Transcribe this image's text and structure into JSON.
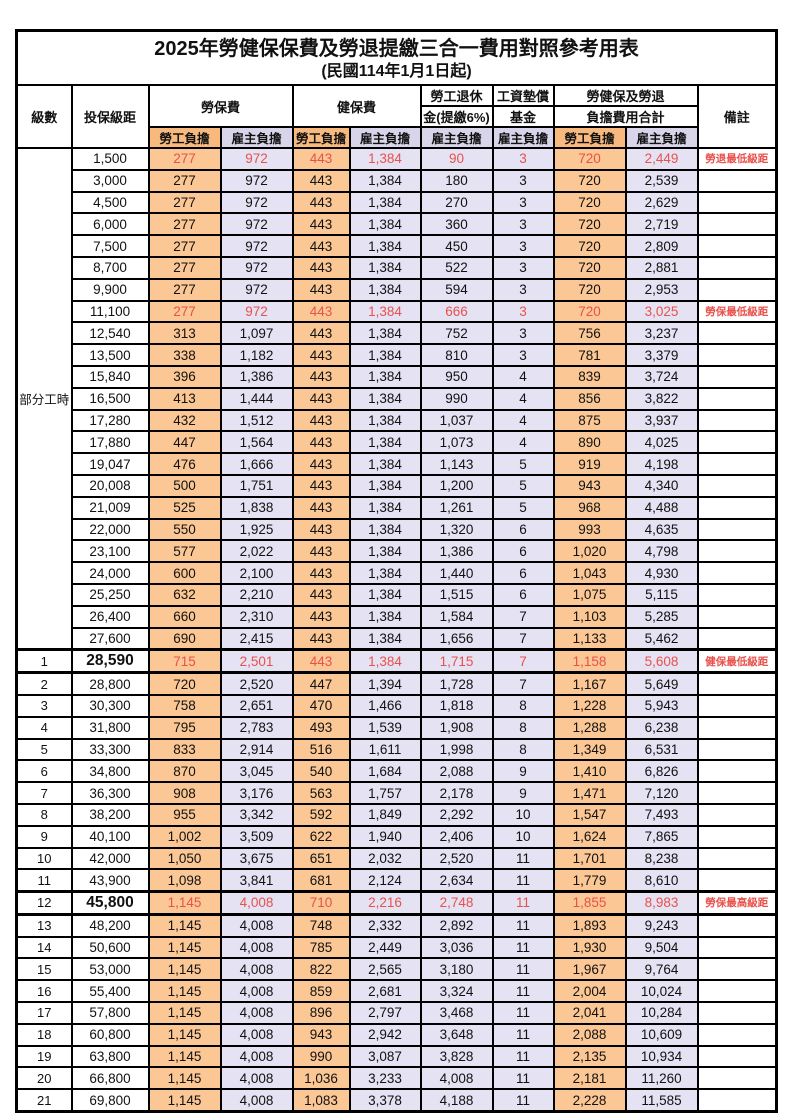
{
  "title": "2025年勞健保保費及勞退提繳三合一費用對照參考用表",
  "subtitle": "(民國114年1月1日起)",
  "part_time_label": "部分工時",
  "header": {
    "level": "級數",
    "bracket": "投保級距",
    "labor_ins": "勞保費",
    "health_ins": "健保費",
    "pension_line1": "勞工退休",
    "pension_line2": "金(提繳6%)",
    "wage_fund_line1": "工資墊償",
    "wage_fund_line2": "基金",
    "total_line1": "勞健保及勞退",
    "total_line2": "負擔費用合計",
    "remark": "備註",
    "employee": "勞工負擔",
    "employer": "雇主負擔"
  },
  "colors": {
    "employee_header_bg": "#f8b97e",
    "employer_header_bg": "#d8d4ea",
    "employee_cell_bg": "#fbc795",
    "employer_cell_bg": "#e5e2f3",
    "highlight_red": "#e8514c",
    "grid_black": "#000000"
  },
  "rows": [
    {
      "level": "",
      "bracket": "1,500",
      "values": [
        "277",
        "972",
        "443",
        "1,384",
        "90",
        "3",
        "720",
        "2,449"
      ],
      "remark": "勞退最低級距",
      "red": true
    },
    {
      "level": "",
      "bracket": "3,000",
      "values": [
        "277",
        "972",
        "443",
        "1,384",
        "180",
        "3",
        "720",
        "2,539"
      ],
      "remark": ""
    },
    {
      "level": "",
      "bracket": "4,500",
      "values": [
        "277",
        "972",
        "443",
        "1,384",
        "270",
        "3",
        "720",
        "2,629"
      ],
      "remark": ""
    },
    {
      "level": "",
      "bracket": "6,000",
      "values": [
        "277",
        "972",
        "443",
        "1,384",
        "360",
        "3",
        "720",
        "2,719"
      ],
      "remark": ""
    },
    {
      "level": "",
      "bracket": "7,500",
      "values": [
        "277",
        "972",
        "443",
        "1,384",
        "450",
        "3",
        "720",
        "2,809"
      ],
      "remark": ""
    },
    {
      "level": "",
      "bracket": "8,700",
      "values": [
        "277",
        "972",
        "443",
        "1,384",
        "522",
        "3",
        "720",
        "2,881"
      ],
      "remark": ""
    },
    {
      "level": "",
      "bracket": "9,900",
      "values": [
        "277",
        "972",
        "443",
        "1,384",
        "594",
        "3",
        "720",
        "2,953"
      ],
      "remark": ""
    },
    {
      "level": "",
      "bracket": "11,100",
      "values": [
        "277",
        "972",
        "443",
        "1,384",
        "666",
        "3",
        "720",
        "3,025"
      ],
      "remark": "勞保最低級距",
      "red": true
    },
    {
      "level": "",
      "bracket": "12,540",
      "values": [
        "313",
        "1,097",
        "443",
        "1,384",
        "752",
        "3",
        "756",
        "3,237"
      ],
      "remark": ""
    },
    {
      "level": "",
      "bracket": "13,500",
      "values": [
        "338",
        "1,182",
        "443",
        "1,384",
        "810",
        "3",
        "781",
        "3,379"
      ],
      "remark": ""
    },
    {
      "level": "",
      "bracket": "15,840",
      "values": [
        "396",
        "1,386",
        "443",
        "1,384",
        "950",
        "4",
        "839",
        "3,724"
      ],
      "remark": ""
    },
    {
      "level": "",
      "bracket": "16,500",
      "values": [
        "413",
        "1,444",
        "443",
        "1,384",
        "990",
        "4",
        "856",
        "3,822"
      ],
      "remark": ""
    },
    {
      "level": "",
      "bracket": "17,280",
      "values": [
        "432",
        "1,512",
        "443",
        "1,384",
        "1,037",
        "4",
        "875",
        "3,937"
      ],
      "remark": ""
    },
    {
      "level": "",
      "bracket": "17,880",
      "values": [
        "447",
        "1,564",
        "443",
        "1,384",
        "1,073",
        "4",
        "890",
        "4,025"
      ],
      "remark": ""
    },
    {
      "level": "",
      "bracket": "19,047",
      "values": [
        "476",
        "1,666",
        "443",
        "1,384",
        "1,143",
        "5",
        "919",
        "4,198"
      ],
      "remark": ""
    },
    {
      "level": "",
      "bracket": "20,008",
      "values": [
        "500",
        "1,751",
        "443",
        "1,384",
        "1,200",
        "5",
        "943",
        "4,340"
      ],
      "remark": ""
    },
    {
      "level": "",
      "bracket": "21,009",
      "values": [
        "525",
        "1,838",
        "443",
        "1,384",
        "1,261",
        "5",
        "968",
        "4,488"
      ],
      "remark": ""
    },
    {
      "level": "",
      "bracket": "22,000",
      "values": [
        "550",
        "1,925",
        "443",
        "1,384",
        "1,320",
        "6",
        "993",
        "4,635"
      ],
      "remark": ""
    },
    {
      "level": "",
      "bracket": "23,100",
      "values": [
        "577",
        "2,022",
        "443",
        "1,384",
        "1,386",
        "6",
        "1,020",
        "4,798"
      ],
      "remark": ""
    },
    {
      "level": "",
      "bracket": "24,000",
      "values": [
        "600",
        "2,100",
        "443",
        "1,384",
        "1,440",
        "6",
        "1,043",
        "4,930"
      ],
      "remark": ""
    },
    {
      "level": "",
      "bracket": "25,250",
      "values": [
        "632",
        "2,210",
        "443",
        "1,384",
        "1,515",
        "6",
        "1,075",
        "5,115"
      ],
      "remark": ""
    },
    {
      "level": "",
      "bracket": "26,400",
      "values": [
        "660",
        "2,310",
        "443",
        "1,384",
        "1,584",
        "7",
        "1,103",
        "5,285"
      ],
      "remark": ""
    },
    {
      "level": "",
      "bracket": "27,600",
      "values": [
        "690",
        "2,415",
        "443",
        "1,384",
        "1,656",
        "7",
        "1,133",
        "5,462"
      ],
      "remark": ""
    },
    {
      "level": "1",
      "bracket": "28,590",
      "values": [
        "715",
        "2,501",
        "443",
        "1,384",
        "1,715",
        "7",
        "1,158",
        "5,608"
      ],
      "remark": "健保最低級距",
      "red": true,
      "bold": true,
      "thick": true
    },
    {
      "level": "2",
      "bracket": "28,800",
      "values": [
        "720",
        "2,520",
        "447",
        "1,394",
        "1,728",
        "7",
        "1,167",
        "5,649"
      ],
      "remark": ""
    },
    {
      "level": "3",
      "bracket": "30,300",
      "values": [
        "758",
        "2,651",
        "470",
        "1,466",
        "1,818",
        "8",
        "1,228",
        "5,943"
      ],
      "remark": ""
    },
    {
      "level": "4",
      "bracket": "31,800",
      "values": [
        "795",
        "2,783",
        "493",
        "1,539",
        "1,908",
        "8",
        "1,288",
        "6,238"
      ],
      "remark": ""
    },
    {
      "level": "5",
      "bracket": "33,300",
      "values": [
        "833",
        "2,914",
        "516",
        "1,611",
        "1,998",
        "8",
        "1,349",
        "6,531"
      ],
      "remark": ""
    },
    {
      "level": "6",
      "bracket": "34,800",
      "values": [
        "870",
        "3,045",
        "540",
        "1,684",
        "2,088",
        "9",
        "1,410",
        "6,826"
      ],
      "remark": ""
    },
    {
      "level": "7",
      "bracket": "36,300",
      "values": [
        "908",
        "3,176",
        "563",
        "1,757",
        "2,178",
        "9",
        "1,471",
        "7,120"
      ],
      "remark": ""
    },
    {
      "level": "8",
      "bracket": "38,200",
      "values": [
        "955",
        "3,342",
        "592",
        "1,849",
        "2,292",
        "10",
        "1,547",
        "7,493"
      ],
      "remark": ""
    },
    {
      "level": "9",
      "bracket": "40,100",
      "values": [
        "1,002",
        "3,509",
        "622",
        "1,940",
        "2,406",
        "10",
        "1,624",
        "7,865"
      ],
      "remark": ""
    },
    {
      "level": "10",
      "bracket": "42,000",
      "values": [
        "1,050",
        "3,675",
        "651",
        "2,032",
        "2,520",
        "11",
        "1,701",
        "8,238"
      ],
      "remark": ""
    },
    {
      "level": "11",
      "bracket": "43,900",
      "values": [
        "1,098",
        "3,841",
        "681",
        "2,124",
        "2,634",
        "11",
        "1,779",
        "8,610"
      ],
      "remark": ""
    },
    {
      "level": "12",
      "bracket": "45,800",
      "values": [
        "1,145",
        "4,008",
        "710",
        "2,216",
        "2,748",
        "11",
        "1,855",
        "8,983"
      ],
      "remark": "勞保最高級距",
      "red": true,
      "bold": true,
      "thick": true
    },
    {
      "level": "13",
      "bracket": "48,200",
      "values": [
        "1,145",
        "4,008",
        "748",
        "2,332",
        "2,892",
        "11",
        "1,893",
        "9,243"
      ],
      "remark": ""
    },
    {
      "level": "14",
      "bracket": "50,600",
      "values": [
        "1,145",
        "4,008",
        "785",
        "2,449",
        "3,036",
        "11",
        "1,930",
        "9,504"
      ],
      "remark": ""
    },
    {
      "level": "15",
      "bracket": "53,000",
      "values": [
        "1,145",
        "4,008",
        "822",
        "2,565",
        "3,180",
        "11",
        "1,967",
        "9,764"
      ],
      "remark": ""
    },
    {
      "level": "16",
      "bracket": "55,400",
      "values": [
        "1,145",
        "4,008",
        "859",
        "2,681",
        "3,324",
        "11",
        "2,004",
        "10,024"
      ],
      "remark": ""
    },
    {
      "level": "17",
      "bracket": "57,800",
      "values": [
        "1,145",
        "4,008",
        "896",
        "2,797",
        "3,468",
        "11",
        "2,041",
        "10,284"
      ],
      "remark": ""
    },
    {
      "level": "18",
      "bracket": "60,800",
      "values": [
        "1,145",
        "4,008",
        "943",
        "2,942",
        "3,648",
        "11",
        "2,088",
        "10,609"
      ],
      "remark": ""
    },
    {
      "level": "19",
      "bracket": "63,800",
      "values": [
        "1,145",
        "4,008",
        "990",
        "3,087",
        "3,828",
        "11",
        "2,135",
        "10,934"
      ],
      "remark": ""
    },
    {
      "level": "20",
      "bracket": "66,800",
      "values": [
        "1,145",
        "4,008",
        "1,036",
        "3,233",
        "4,008",
        "11",
        "2,181",
        "11,260"
      ],
      "remark": ""
    },
    {
      "level": "21",
      "bracket": "69,800",
      "values": [
        "1,145",
        "4,008",
        "1,083",
        "3,378",
        "4,188",
        "11",
        "2,228",
        "11,585"
      ],
      "remark": ""
    }
  ]
}
